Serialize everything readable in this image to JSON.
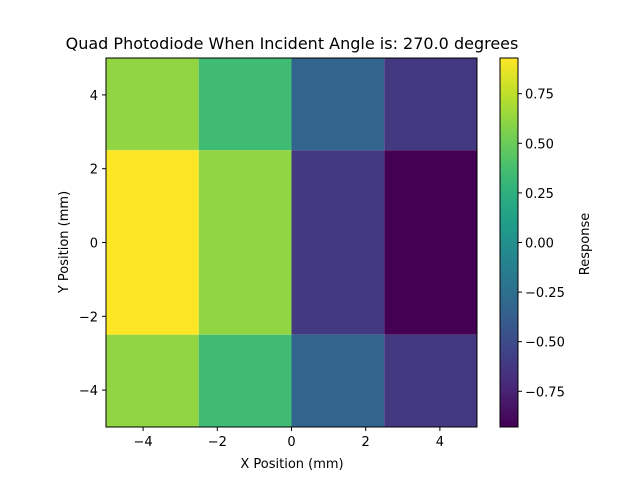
{
  "chart_data": {
    "type": "heatmap",
    "title": "Quad Photodiode When Incident Angle is: 270.0 degrees",
    "xlabel": "X Position (mm)",
    "ylabel": "Y Position (mm)",
    "colorbar_label": "Response",
    "colormap": "viridis",
    "xlim": [
      -5,
      5
    ],
    "ylim": [
      -5,
      5
    ],
    "x_edges": [
      -5,
      -2.5,
      0,
      2.5,
      5
    ],
    "y_edges": [
      5,
      2.5,
      -2.5,
      -5
    ],
    "values": [
      [
        0.62,
        0.35,
        -0.33,
        -0.62
      ],
      [
        0.93,
        0.62,
        -0.62,
        -0.93
      ],
      [
        0.62,
        0.35,
        -0.33,
        -0.62
      ]
    ],
    "x_ticks": [
      -4,
      -2,
      0,
      2,
      4
    ],
    "x_tick_labels": [
      "−4",
      "−2",
      "0",
      "2",
      "4"
    ],
    "y_ticks": [
      4,
      2,
      0,
      -2,
      -4
    ],
    "y_tick_labels": [
      "4",
      "2",
      "0",
      "−2",
      "−4"
    ],
    "colorbar_range": [
      -0.93,
      0.93
    ],
    "colorbar_ticks": [
      0.75,
      0.5,
      0.25,
      0.0,
      -0.25,
      -0.5,
      -0.75
    ],
    "colorbar_tick_labels": [
      "0.75",
      "0.50",
      "0.25",
      "0.00",
      "−0.25",
      "−0.50",
      "−0.75"
    ],
    "grid": false
  }
}
